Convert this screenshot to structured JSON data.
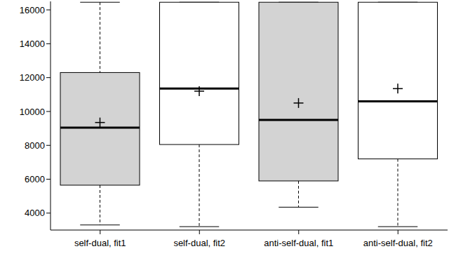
{
  "chart_data": {
    "type": "box",
    "categories": [
      "self-dual, fit1",
      "self-dual, fit2",
      "anti-self-dual, fit1",
      "anti-self-dual, fit2"
    ],
    "whisker_low": [
      3300,
      3200,
      4350,
      3200
    ],
    "q1": [
      5650,
      8050,
      5900,
      7200
    ],
    "median": [
      9050,
      11350,
      9500,
      10600
    ],
    "q3": [
      12300,
      16450,
      16450,
      16450
    ],
    "whisker_high": [
      16450,
      16450,
      16450,
      16450
    ],
    "mean": [
      9350,
      11200,
      10500,
      11350
    ],
    "colors": [
      "#d3d3d3",
      "#ffffff",
      "#d3d3d3",
      "#ffffff"
    ],
    "marker": "plus",
    "ylim": [
      3000,
      16500
    ],
    "yticks": [
      4000,
      6000,
      8000,
      10000,
      12000,
      14000,
      16000
    ]
  }
}
